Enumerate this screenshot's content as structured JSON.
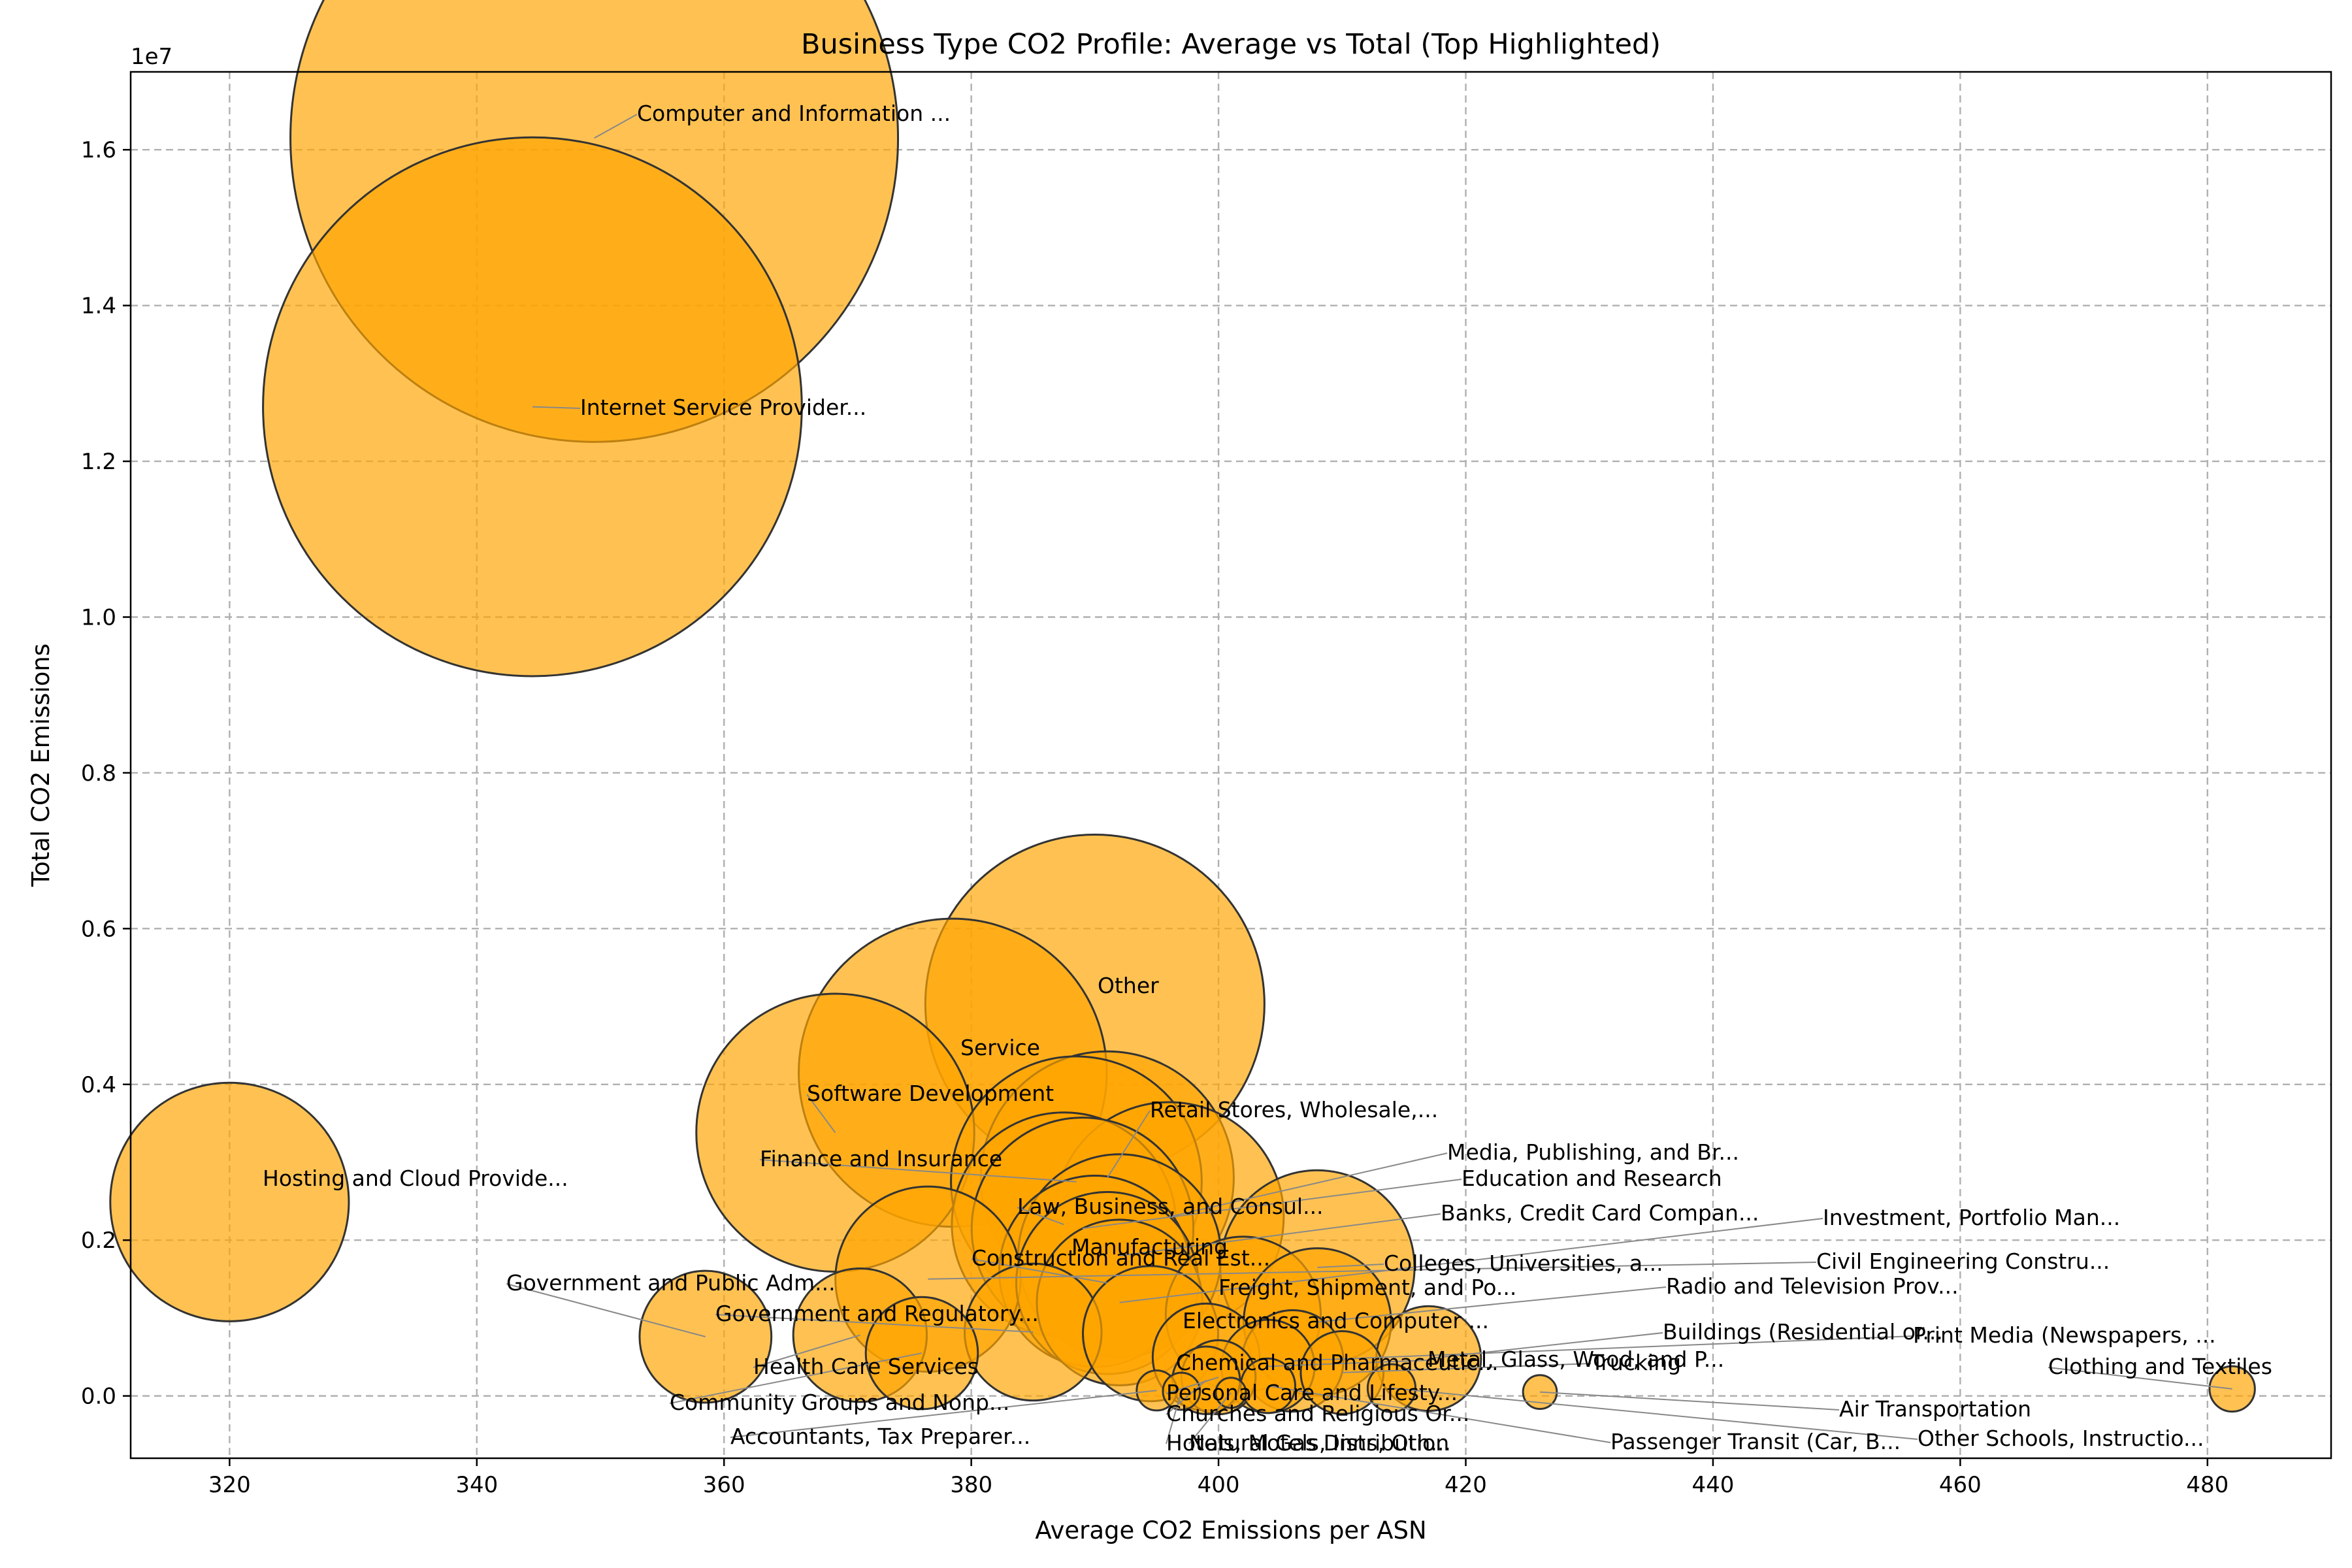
{
  "chart_data": {
    "type": "scatter",
    "title": "Business Type CO2 Profile: Average vs Total (Top Highlighted)",
    "xlabel": "Average CO2 Emissions per ASN",
    "ylabel": "Total CO2 Emissions",
    "y_offset_text": "1e7",
    "xlim": [
      312,
      490
    ],
    "ylim": [
      -800000,
      17000000
    ],
    "xticks": [
      320,
      340,
      360,
      380,
      400,
      420,
      440,
      460,
      480
    ],
    "xtick_labels": [
      "320",
      "340",
      "360",
      "380",
      "400",
      "420",
      "440",
      "460",
      "480"
    ],
    "yticks": [
      0,
      2000000,
      4000000,
      6000000,
      8000000,
      10000000,
      12000000,
      14000000,
      16000000
    ],
    "ytick_labels": [
      "0.0",
      "0.2",
      "0.4",
      "0.6",
      "0.8",
      "1.0",
      "1.2",
      "1.4",
      "1.6"
    ],
    "grid": true,
    "colors": {
      "marker_fill": "#FFA500",
      "marker_edge": "#333333",
      "leader_line": "#888888"
    },
    "points": [
      {
        "label": "Computer and Information ...",
        "x": 349.5,
        "y": 16150000
      },
      {
        "label": "Internet Service Provider...",
        "x": 344.5,
        "y": 12700000
      },
      {
        "label": "Other",
        "x": 390,
        "y": 5030000
      },
      {
        "label": "Service",
        "x": 378.5,
        "y": 4150000
      },
      {
        "label": "Software Development",
        "x": 369,
        "y": 3380000
      },
      {
        "label": "Hosting and Cloud Provide...",
        "x": 320,
        "y": 2490000
      },
      {
        "label": "Finance and Insurance",
        "x": 388.5,
        "y": 2750000
      },
      {
        "label": "Retail Stores, Wholesale,...",
        "x": 391,
        "y": 2800000
      },
      {
        "label": "Media, Publishing, and Br...",
        "x": 396,
        "y": 2300000
      },
      {
        "label": "Law, Business, and Consul...",
        "x": 387.5,
        "y": 2200000
      },
      {
        "label": "Education and Research",
        "x": 389,
        "y": 2150000
      },
      {
        "label": "Banks, Credit Card Compan...",
        "x": 392,
        "y": 1800000
      },
      {
        "label": "Manufacturing",
        "x": 390,
        "y": 1600000
      },
      {
        "label": "Construction and Real Est...",
        "x": 391,
        "y": 1450000
      },
      {
        "label": "Colleges, Universities, a...",
        "x": 408,
        "y": 1650000
      },
      {
        "label": "Investment, Portfolio Man...",
        "x": 392,
        "y": 1200000
      },
      {
        "label": "Civil Engineering Constru...",
        "x": 376.5,
        "y": 1500000
      },
      {
        "label": "Freight, Shipment, and Po...",
        "x": 402,
        "y": 1050000
      },
      {
        "label": "Government and Public Adm...",
        "x": 358.5,
        "y": 760000
      },
      {
        "label": "Radio and Television Prov...",
        "x": 408,
        "y": 950000
      },
      {
        "label": "Government and Regulatory...",
        "x": 385,
        "y": 820000
      },
      {
        "label": "Electronics and Computer ...",
        "x": 394.5,
        "y": 800000
      },
      {
        "label": "Health Care Services",
        "x": 371,
        "y": 780000
      },
      {
        "label": "Buildings (Residential or...",
        "x": 417,
        "y": 480000
      },
      {
        "label": "Print Media (Newspapers, ...",
        "x": 406,
        "y": 450000
      },
      {
        "label": "Metal, Glass, Wood, and P...",
        "x": 404,
        "y": 380000
      },
      {
        "label": "Trucking",
        "x": 410,
        "y": 300000
      },
      {
        "label": "Chemical and Pharmaceutic...",
        "x": 399,
        "y": 500000
      },
      {
        "label": "Clothing and Textiles",
        "x": 482,
        "y": 90000
      },
      {
        "label": "Community Groups and Nonp...",
        "x": 376,
        "y": 550000
      },
      {
        "label": "Personal Care and Lifesty...",
        "x": 400,
        "y": 240000
      },
      {
        "label": "Air Transportation",
        "x": 426,
        "y": 50000
      },
      {
        "label": "Churches and Religious Or...",
        "x": 399,
        "y": 200000
      },
      {
        "label": "Accountants, Tax Preparer...",
        "x": 395,
        "y": 70000
      },
      {
        "label": "Other Schools, Instructio...",
        "x": 414,
        "y": 100000
      },
      {
        "label": "Passenger Transit (Car, B...",
        "x": 404,
        "y": 130000
      },
      {
        "label": "Hotels, Motels, Inns, Oth...",
        "x": 397,
        "y": 60000
      },
      {
        "label": "Natural Gas Distribution",
        "x": 401,
        "y": 40000
      }
    ]
  }
}
